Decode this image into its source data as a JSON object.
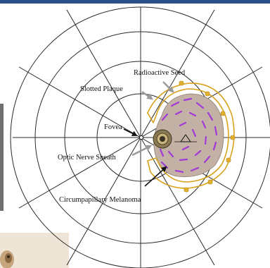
{
  "diagram": {
    "labels": {
      "radioactive_seed": "Radioactive Seed",
      "slotted_plaque": "Slotted Plaque",
      "fovea": "Fovea",
      "optic_nerve_sheath": "Optic Nerve Sheath",
      "circumpapillary_melanoma": "Circumpapillary Melanoma"
    },
    "colors": {
      "top_bar": "#2a4f8a",
      "grid_lines": "#2b2b2b",
      "plaque": "#d8a21c",
      "melanoma": "#c2b1a4",
      "seeds": "#a23bd6",
      "optic_nerve": "#8a7a52",
      "arrow_gray": "#9a9a9a",
      "arrow_black": "#111111",
      "left_bar": "#6f6f6f",
      "photo_bg": "#eee5d6"
    }
  }
}
